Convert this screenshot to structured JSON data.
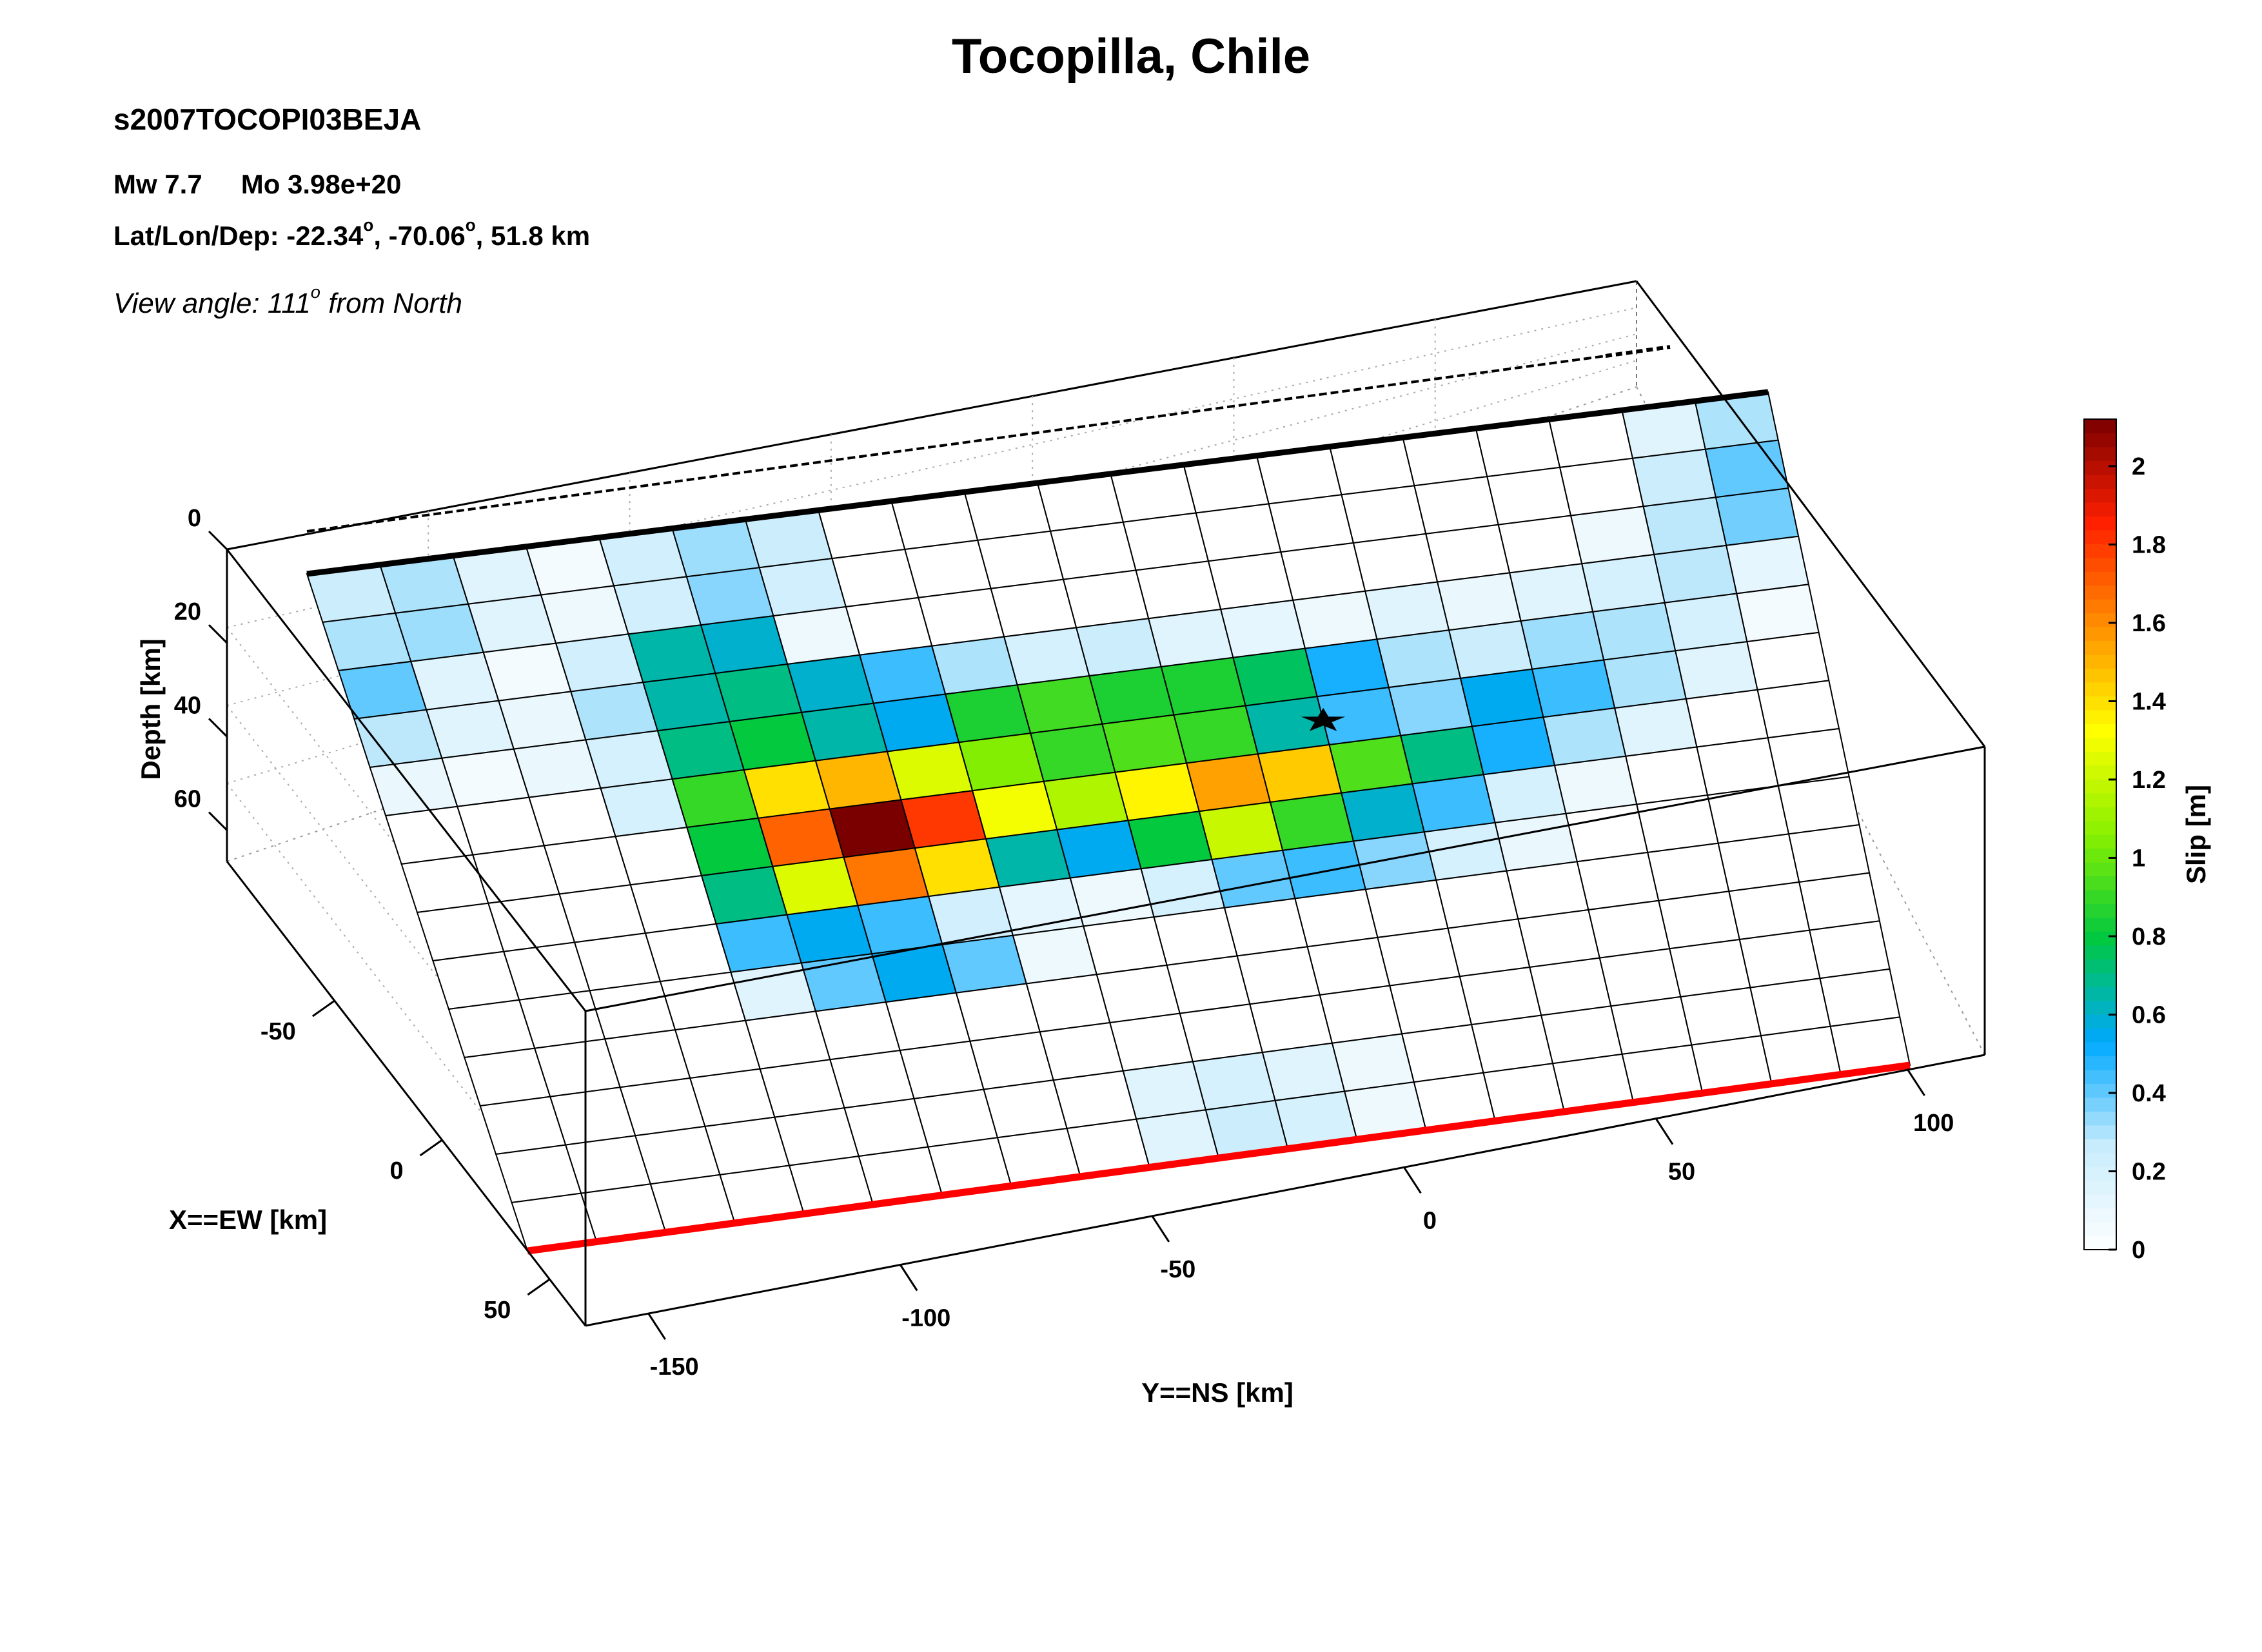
{
  "header": {
    "title": "Tocopilla, Chile",
    "event_id": "s2007TOCOPI03BEJA",
    "mw": "Mw 7.7",
    "mo": "Mo 3.98e+20",
    "location_prefix": "Lat/Lon/Dep: -22.34",
    "lon": ", -70.06",
    "depth": ", 51.8 km",
    "degree_mark": "o",
    "view_prefix": "View angle: 111",
    "view_suffix": " from North"
  },
  "chart_data": {
    "type": "heatmap",
    "title": "Tocopilla, Chile",
    "xlabel": "X==EW [km]",
    "ylabel": "Y==NS [km]",
    "zlabel": "Depth [km]",
    "colorbar_label": "Slip [m]",
    "view_angle_deg": 111,
    "x_ticks": [
      "-50",
      "0",
      "50"
    ],
    "y_ticks": [
      "-150",
      "-100",
      "-50",
      "0",
      "50",
      "100"
    ],
    "z_ticks": [
      "0",
      "20",
      "40",
      "60"
    ],
    "colorbar_ticks": [
      "0",
      "0.2",
      "0.4",
      "0.6",
      "0.8",
      "1",
      "1.2",
      "1.4",
      "1.6",
      "1.8",
      "2"
    ],
    "colorbar_range": [
      0,
      2.12
    ],
    "subfault_rows": 14,
    "subfault_cols": 20,
    "row_order": "top edge (shallow) to bottom edge (deep)",
    "col_order": "south (-Y) to north (+Y)",
    "slip": [
      [
        0.25,
        0.3,
        0.15,
        0.06,
        0.22,
        0.32,
        0.25,
        0,
        0,
        0,
        0,
        0,
        0,
        0,
        0,
        0,
        0,
        0,
        0.15,
        0.3
      ],
      [
        0.3,
        0.32,
        0.15,
        0.08,
        0.22,
        0.35,
        0.22,
        0,
        0,
        0,
        0,
        0,
        0,
        0,
        0,
        0,
        0,
        0,
        0.25,
        0.4
      ],
      [
        0.4,
        0.15,
        0.06,
        0.22,
        0.65,
        0.6,
        0.08,
        0,
        0,
        0,
        0,
        0,
        0,
        0,
        0,
        0,
        0,
        0.08,
        0.28,
        0.38
      ],
      [
        0.28,
        0.15,
        0.1,
        0.3,
        0.65,
        0.7,
        0.6,
        0.45,
        0.3,
        0.2,
        0.25,
        0.15,
        0.12,
        0.08,
        0.15,
        0.1,
        0.15,
        0.2,
        0.28,
        0.12
      ],
      [
        0.1,
        0.06,
        0.1,
        0.2,
        0.7,
        0.8,
        0.65,
        0.55,
        0.85,
        0.92,
        0.85,
        0.85,
        0.75,
        0.5,
        0.3,
        0.25,
        0.32,
        0.3,
        0.2,
        0.06
      ],
      [
        0,
        0,
        0,
        0.2,
        0.9,
        1.4,
        1.5,
        1.25,
        1.05,
        0.9,
        0.95,
        0.9,
        0.65,
        0.45,
        0.35,
        0.55,
        0.45,
        0.3,
        0.15,
        0
      ],
      [
        0,
        0,
        0,
        0,
        0.8,
        1.7,
        2.12,
        1.8,
        1.3,
        1.15,
        1.35,
        1.55,
        1.45,
        0.95,
        0.7,
        0.5,
        0.3,
        0.15,
        0,
        0
      ],
      [
        0,
        0,
        0,
        0,
        0.7,
        1.25,
        1.65,
        1.4,
        0.65,
        0.55,
        0.8,
        1.2,
        0.9,
        0.6,
        0.45,
        0.2,
        0.08,
        0,
        0,
        0
      ],
      [
        0,
        0,
        0,
        0,
        0.45,
        0.55,
        0.45,
        0.22,
        0.12,
        0.08,
        0.2,
        0.4,
        0.45,
        0.35,
        0.2,
        0.1,
        0,
        0,
        0,
        0
      ],
      [
        0,
        0,
        0,
        0,
        0.15,
        0.4,
        0.55,
        0.4,
        0.08,
        0,
        0,
        0,
        0,
        0,
        0,
        0,
        0,
        0,
        0,
        0
      ],
      [
        0,
        0,
        0,
        0,
        0,
        0,
        0,
        0,
        0,
        0,
        0,
        0,
        0,
        0,
        0,
        0,
        0,
        0,
        0,
        0
      ],
      [
        0,
        0,
        0,
        0,
        0,
        0,
        0,
        0,
        0,
        0,
        0,
        0,
        0,
        0,
        0,
        0,
        0,
        0,
        0,
        0
      ],
      [
        0,
        0,
        0,
        0,
        0,
        0,
        0,
        0,
        0,
        0.15,
        0.2,
        0.15,
        0.08,
        0,
        0,
        0,
        0,
        0,
        0,
        0
      ],
      [
        0,
        0,
        0,
        0,
        0,
        0,
        0,
        0,
        0,
        0.15,
        0.25,
        0.2,
        0.08,
        0,
        0,
        0,
        0,
        0,
        0,
        0
      ]
    ],
    "hypocenter": {
      "row": 5.5,
      "col": 13.0
    },
    "trench_color": "#000000",
    "surface_projection_color": "#ff0000",
    "colormap": [
      "#ffffff",
      "#c8ecfc",
      "#00a8ff",
      "#00c840",
      "#88f000",
      "#ffff00",
      "#ff9000",
      "#ff2000",
      "#7a0000"
    ]
  }
}
